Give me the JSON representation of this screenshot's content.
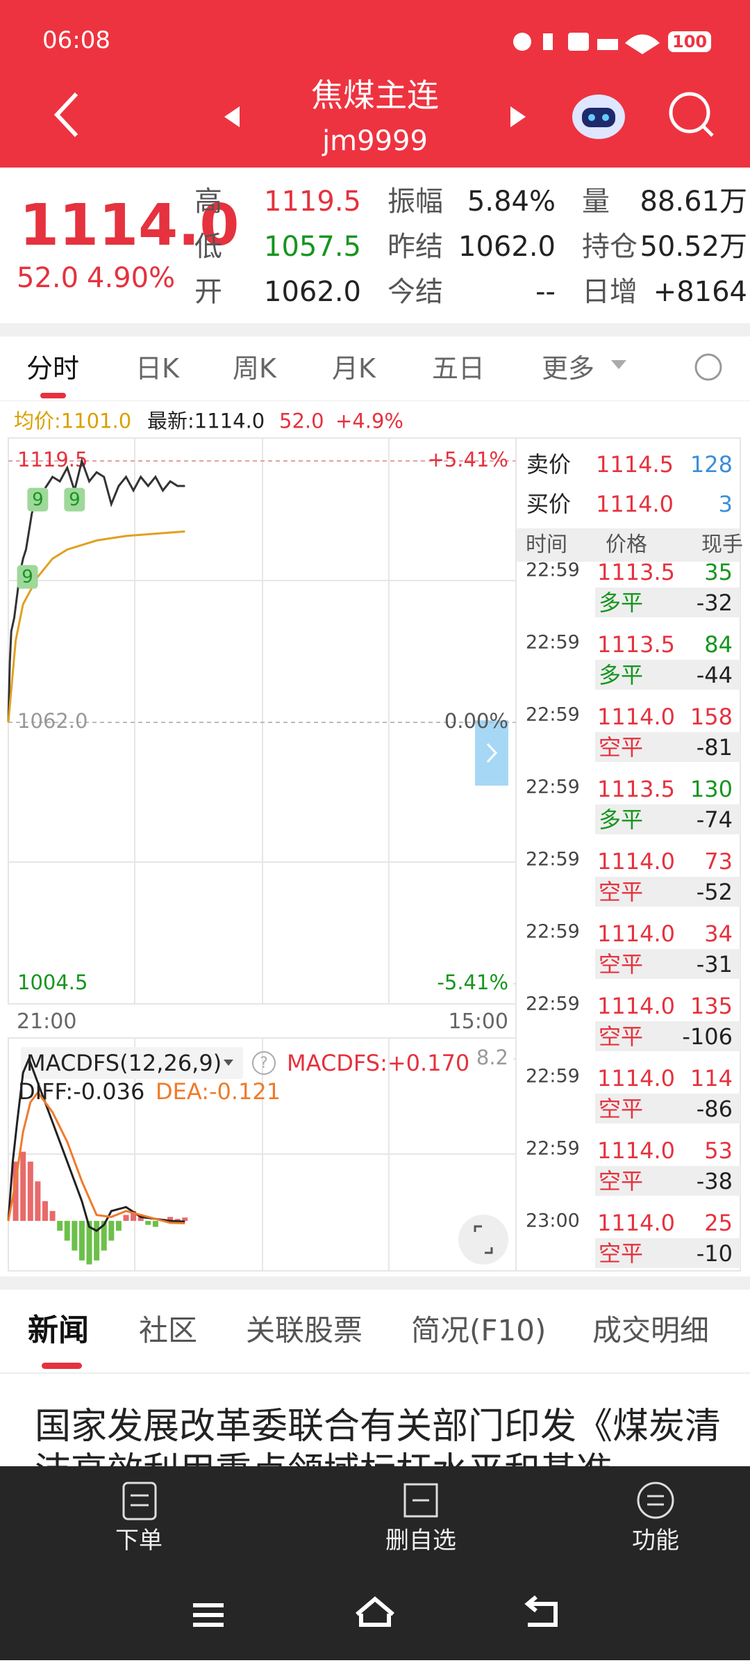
{
  "status_bar": {
    "time": "06:08",
    "battery": "100"
  },
  "header": {
    "title": "焦煤主连",
    "code": "jm9999"
  },
  "quote": {
    "price": "1114.0",
    "change": "52.0",
    "change_pct": "4.90%",
    "fields": [
      {
        "label": "高",
        "value": "1119.5"
      },
      {
        "label": "低",
        "value": "1057.5"
      },
      {
        "label": "开",
        "value": "1062.0"
      },
      {
        "label": "振幅",
        "value": "5.84%"
      },
      {
        "label": "昨结",
        "value": "1062.0"
      },
      {
        "label": "今结",
        "value": "--"
      },
      {
        "label": "量",
        "value": "88.61万"
      },
      {
        "label": "持仓",
        "value": "50.52万"
      },
      {
        "label": "日增",
        "value": "+8164"
      }
    ]
  },
  "tabs": [
    "分时",
    "日K",
    "周K",
    "月K",
    "五日",
    "更多"
  ],
  "info_line": {
    "avg": "均价:1101.0",
    "latest": "最新:1114.0",
    "change": "52.0",
    "change_pct": "+4.9%"
  },
  "intraday_chart": {
    "type": "line",
    "x_labels": [
      "21:00",
      "15:00"
    ],
    "xlim": [
      0,
      345
    ],
    "ylim": [
      1004.5,
      1119.5
    ],
    "yticks": [
      1119.5,
      {
        "value": 1062,
        "label": "1062.0"
      },
      1004.5
    ],
    "y2lim": [
      -5.41,
      5.41
    ],
    "y2ticks": [
      {
        "value": 5.41,
        "label": "+5.41%"
      },
      {
        "value": 0,
        "label": "0.00%"
      },
      {
        "value": -5.41,
        "label": "-5.41%"
      }
    ],
    "series": [
      {
        "color": "#333333",
        "x": [
          0,
          1,
          2,
          4,
          6,
          8,
          10,
          12,
          14,
          16,
          18,
          22,
          26,
          30,
          35,
          40,
          45,
          50,
          55,
          60,
          65,
          70,
          75,
          80,
          85,
          90,
          95,
          100,
          105,
          110,
          115,
          120
        ],
        "values": [
          1062,
          1075,
          1082,
          1085,
          1090,
          1095,
          1098,
          1100,
          1104,
          1108,
          1110,
          1112,
          1114,
          1116,
          1115,
          1118,
          1113,
          1119.5,
          1115,
          1117,
          1116,
          1110,
          1114,
          1116,
          1113,
          1116,
          1114,
          1116,
          1113,
          1115,
          1114,
          1114
        ]
      },
      {
        "color": "#e0a020",
        "x": [
          0,
          5,
          10,
          20,
          30,
          40,
          60,
          80,
          100,
          120
        ],
        "values": [
          1062,
          1080,
          1088,
          1094,
          1098,
          1100,
          1102,
          1103,
          1103.5,
          1104
        ]
      }
    ],
    "annotations": [
      {
        "label": "9",
        "x": 20,
        "value": 1111
      },
      {
        "label": "9",
        "x": 45,
        "value": 1111
      },
      {
        "label": "9",
        "x": 13,
        "value": 1094
      }
    ]
  },
  "order_book": {
    "ask": {
      "label": "卖价",
      "price": "1114.5",
      "volume": "128"
    },
    "bid": {
      "label": "买价",
      "price": "1114.0",
      "volume": "3"
    },
    "columns": [
      "时间",
      "价格",
      "现手"
    ],
    "rows": [
      {
        "time": "22:59",
        "price": "1113.5",
        "volume": "35",
        "type": "多平",
        "change": "-32",
        "color": "#16951f"
      },
      {
        "time": "22:59",
        "price": "1113.5",
        "volume": "84",
        "type": "多平",
        "change": "-44",
        "color": "#16951f"
      },
      {
        "time": "22:59",
        "price": "1114.0",
        "volume": "158",
        "type": "空平",
        "change": "-81",
        "color": "#e5323e"
      },
      {
        "time": "22:59",
        "price": "1113.5",
        "volume": "130",
        "type": "多平",
        "change": "-74",
        "color": "#16951f"
      },
      {
        "time": "22:59",
        "price": "1114.0",
        "volume": "73",
        "type": "空平",
        "change": "-52",
        "color": "#e5323e"
      },
      {
        "time": "22:59",
        "price": "1114.0",
        "volume": "34",
        "type": "空平",
        "change": "-31",
        "color": "#e5323e"
      },
      {
        "time": "22:59",
        "price": "1114.0",
        "volume": "135",
        "type": "空平",
        "change": "-106",
        "color": "#e5323e"
      },
      {
        "time": "22:59",
        "price": "1114.0",
        "volume": "114",
        "type": "空平",
        "change": "-86",
        "color": "#e5323e"
      },
      {
        "time": "22:59",
        "price": "1114.0",
        "volume": "53",
        "type": "空平",
        "change": "-38",
        "color": "#e5323e"
      },
      {
        "time": "23:00",
        "price": "1114.0",
        "volume": "25",
        "type": "空平",
        "change": "-10",
        "color": "#e5323e"
      }
    ]
  },
  "macd_chart": {
    "type": "macd",
    "title": "MACDFS(12,26,9)",
    "value_label": "MACDFS:+0.170",
    "diff_label": "DIFF:-0.036",
    "dea_label": "DEA:-0.121",
    "xlim": [
      0,
      345
    ],
    "ylim": [
      -2.53,
      8.2
    ],
    "yticks": [
      8.2
    ],
    "histogram": {
      "x": [
        0,
        5,
        10,
        15,
        20,
        25,
        30,
        35,
        40,
        45,
        50,
        55,
        60,
        65,
        70,
        75,
        80,
        85,
        90,
        95,
        100,
        105,
        110,
        115,
        120
      ],
      "values": [
        0,
        3,
        3.5,
        3,
        2,
        1,
        0.5,
        -0.5,
        -1,
        -1.5,
        -2,
        -2.2,
        -2,
        -1.5,
        -1,
        -0.5,
        0.3,
        0.5,
        0.2,
        -0.2,
        -0.3,
        0.1,
        0.2,
        0.1,
        0.17
      ],
      "up_color": "#e86a6a",
      "down_color": "#6cc04a"
    },
    "series": [
      {
        "color": "#222222",
        "x": [
          0,
          3,
          6,
          10,
          14,
          20,
          30,
          40,
          50,
          55,
          60,
          65,
          70,
          80,
          90,
          100,
          110,
          120
        ],
        "values": [
          0,
          3,
          5,
          7.5,
          8.2,
          7,
          5,
          3,
          1,
          -0.3,
          -0.5,
          -0.2,
          0.5,
          0.7,
          0.2,
          0.1,
          0,
          -0.036
        ]
      },
      {
        "color": "#f07a2a",
        "x": [
          0,
          5,
          10,
          15,
          20,
          30,
          40,
          50,
          60,
          70,
          80,
          90,
          100,
          110,
          120
        ],
        "values": [
          0,
          2,
          4.5,
          6,
          6.5,
          5.5,
          4,
          2,
          0.3,
          0.2,
          0.5,
          0.3,
          0.1,
          -0.1,
          -0.121
        ]
      }
    ]
  },
  "news": {
    "tabs": [
      "新闻",
      "社区",
      "关联股票",
      "简况(F10)",
      "成交明细"
    ],
    "headline": "国家发展改革委联合有关部门印发《煤炭清洁高效利用重点领域标杆水平和基准"
  },
  "bottom_bar": {
    "items": [
      "下单",
      "删自选",
      "功能"
    ]
  }
}
